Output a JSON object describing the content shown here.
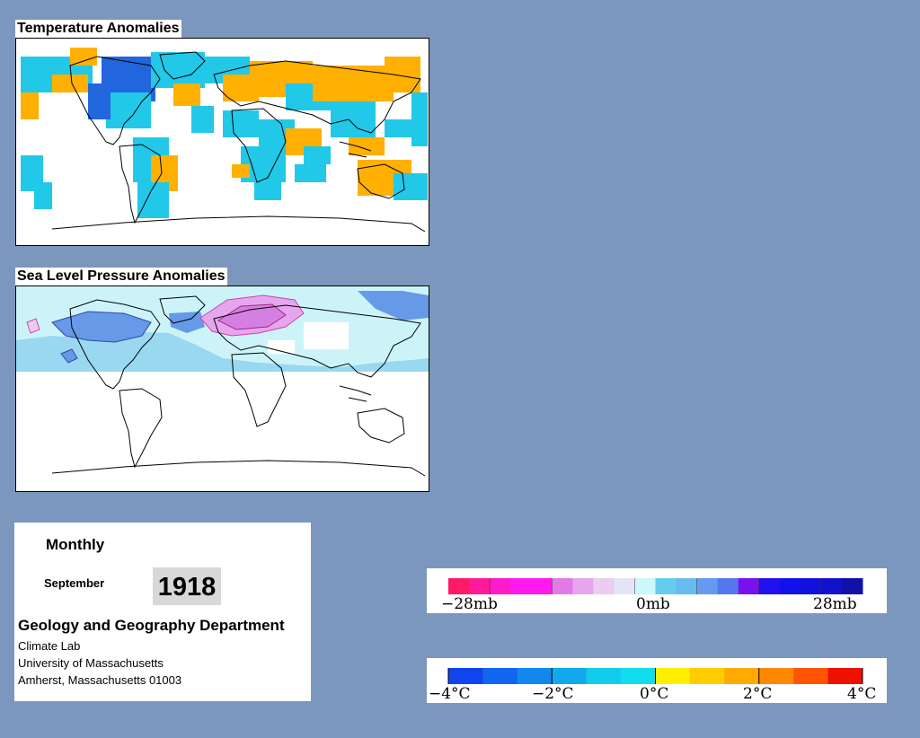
{
  "temperature_map": {
    "title": "Temperature Anomalies"
  },
  "pressure_map": {
    "title": "Sea Level Pressure Anomalies"
  },
  "info": {
    "frequency": "Monthly",
    "month": "September",
    "year": "1918",
    "department": "Geology and Geography Department",
    "lab": "Climate Lab",
    "university": "University of Massachusetts",
    "address": "Amherst, Massachusetts 01003"
  },
  "pressure_legend": {
    "unit": "mb",
    "tick_labels": [
      "−28mb",
      "0mb",
      "28mb"
    ],
    "colors": [
      "#ff1a66",
      "#ff1a99",
      "#ff1acc",
      "#ff1aee",
      "#ff1aee",
      "#e27ae8",
      "#e6a6ee",
      "#ecccf2",
      "#e4e4f6",
      "#ccf8f8",
      "#66ccee",
      "#66bbf0",
      "#6699f0",
      "#5577ee",
      "#7711ee",
      "#2211ee",
      "#1111ee",
      "#1111dd",
      "#1111cc",
      "#1111aa"
    ]
  },
  "temperature_legend": {
    "unit": "°C",
    "tick_labels": [
      "−4°C",
      "−2°C",
      "0°C",
      "2°C",
      "4°C"
    ],
    "colors": [
      "#1144ee",
      "#1166ee",
      "#1188ee",
      "#11aaee",
      "#11ccee",
      "#11ddee",
      "#ffee00",
      "#ffcc00",
      "#ffaa00",
      "#ff8800",
      "#ff5500",
      "#ee1100"
    ]
  },
  "colors": {
    "background": "#7b97bd",
    "warm": "#ffb000",
    "cool": "#22c8e8",
    "cold": "#2266dd",
    "slp_low": "#cc66dd",
    "slp_high": "#ccf4f8"
  }
}
